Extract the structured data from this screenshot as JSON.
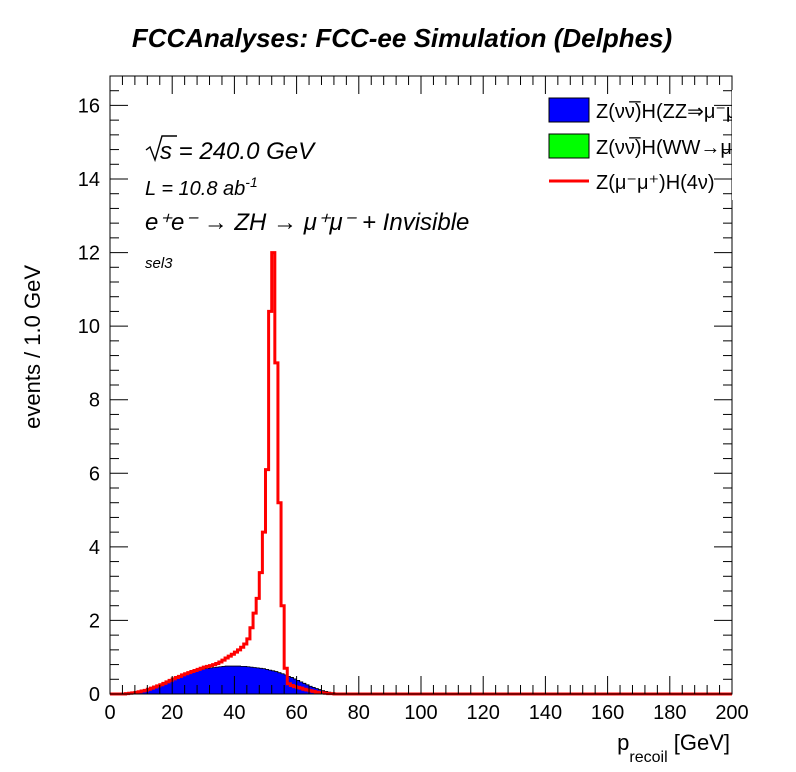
{
  "chart_data": {
    "type": "histogram",
    "title": "FCCAnalyses: FCC-ee Simulation (Delphes)",
    "xlabel": {
      "main": "p",
      "sub": "recoil",
      "unit": " [GeV]"
    },
    "ylabel": "events / 1.0 GeV",
    "xlim": [
      0,
      200
    ],
    "ylim": [
      0,
      16.8
    ],
    "x_ticks": [
      0,
      20,
      40,
      60,
      80,
      100,
      120,
      140,
      160,
      180,
      200
    ],
    "y_ticks": [
      0,
      2,
      4,
      6,
      8,
      10,
      12,
      14,
      16
    ],
    "bin_width": 1.0,
    "annotations": {
      "sqrt_s": "s",
      "energy": " = 240.0 GeV",
      "lumi_base": "L = 10.8 ab",
      "lumi_exp": "-1",
      "process": "e⁺e⁻ → ZH → μ⁺μ⁻ + Invisible",
      "selection": "sel3"
    },
    "series": [
      {
        "name": "Z(νν̅)H(ZZ⇒μ⁻μ⁺νν̅)",
        "legend_visible": "Z(νν̅)H(ZZ⇒μ⁻μ⁺ν",
        "style": "filled",
        "color": "#0000ff",
        "x_start": 0,
        "values": [
          0,
          0,
          0,
          0,
          0,
          0.01,
          0.02,
          0.03,
          0.04,
          0.06,
          0.08,
          0.1,
          0.12,
          0.15,
          0.18,
          0.21,
          0.24,
          0.28,
          0.31,
          0.35,
          0.39,
          0.43,
          0.47,
          0.51,
          0.54,
          0.57,
          0.6,
          0.63,
          0.65,
          0.67,
          0.69,
          0.7,
          0.71,
          0.72,
          0.73,
          0.74,
          0.75,
          0.76,
          0.76,
          0.76,
          0.76,
          0.76,
          0.75,
          0.75,
          0.74,
          0.73,
          0.72,
          0.71,
          0.7,
          0.69,
          0.67,
          0.65,
          0.63,
          0.61,
          0.58,
          0.55,
          0.52,
          0.48,
          0.45,
          0.41,
          0.37,
          0.33,
          0.29,
          0.25,
          0.21,
          0.18,
          0.15,
          0.12,
          0.09,
          0.07,
          0.05,
          0.03,
          0.02,
          0.01,
          0.01,
          0,
          0
        ]
      },
      {
        "name": "Z(νν̅)H(WW→μ⁻ν̅μ⁺ν)",
        "legend_visible": "Z(νν̅)H(WW→μ⁻ν̅μ",
        "style": "filled",
        "color": "#00ff00",
        "x_start": 0,
        "values": []
      },
      {
        "name": "Z(μ⁻μ⁺)H(4ν)",
        "legend_visible": "Z(μ⁻μ⁺)H(4ν)",
        "style": "line",
        "color": "#ff0000",
        "x_start": 0,
        "values": [
          0,
          0,
          0,
          0,
          0,
          0.01,
          0.02,
          0.03,
          0.04,
          0.06,
          0.08,
          0.1,
          0.13,
          0.16,
          0.19,
          0.22,
          0.25,
          0.29,
          0.33,
          0.37,
          0.41,
          0.45,
          0.48,
          0.52,
          0.55,
          0.58,
          0.61,
          0.64,
          0.67,
          0.7,
          0.73,
          0.75,
          0.77,
          0.8,
          0.83,
          0.87,
          0.92,
          0.98,
          1.03,
          1.08,
          1.14,
          1.2,
          1.27,
          1.36,
          1.5,
          1.8,
          2.2,
          2.6,
          3.3,
          4.4,
          6.1,
          10.4,
          12.0,
          9.0,
          5.2,
          2.4,
          0.7,
          0.28,
          0.23,
          0.2,
          0.18,
          0.16,
          0.13,
          0.11,
          0.09,
          0.07,
          0.05,
          0.04,
          0.03,
          0.02,
          0.01,
          0.01,
          0,
          0,
          0,
          0,
          0
        ]
      }
    ],
    "legend_position": "top-right",
    "grid": false
  }
}
